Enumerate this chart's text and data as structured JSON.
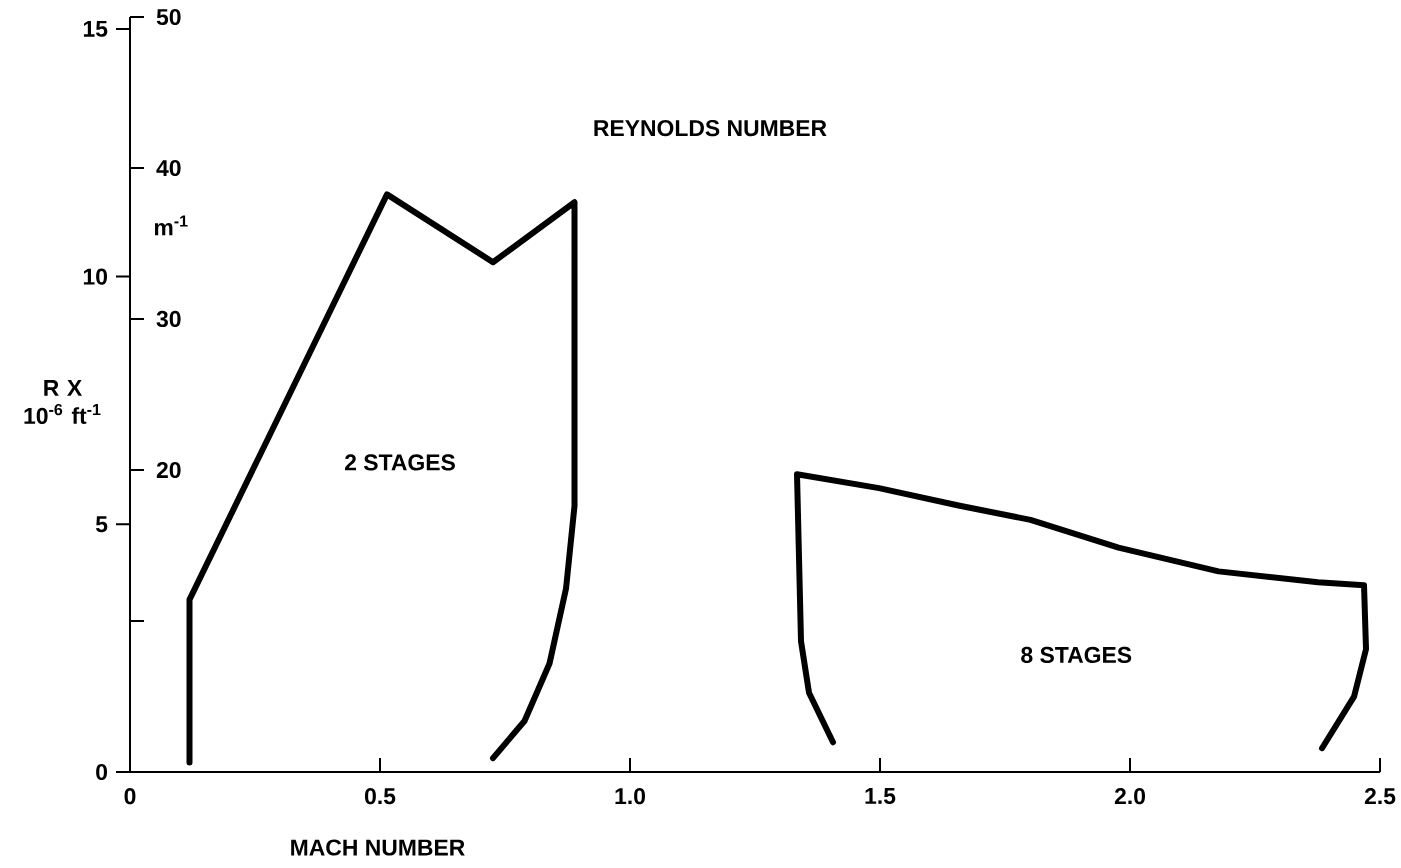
{
  "chart_data": {
    "type": "line",
    "title": "REYNOLDS NUMBER",
    "xlabel": "MACH NUMBER",
    "ylabel": "R X 10$^{-6}$ ft$^{-1}$",
    "y2label": "m$^{-1}$",
    "xlim": [
      0,
      2.5
    ],
    "xticks": [
      0,
      0.5,
      {
        "value": 1.0,
        "label": "1.0"
      },
      1.5,
      {
        "value": 2.0,
        "label": "2.0"
      },
      2.5
    ],
    "ylim": [
      0,
      15.24
    ],
    "yticks": [
      0,
      5,
      10,
      15
    ],
    "y2lim": [
      0,
      50
    ],
    "y2ticks": [
      {
        "value": 10,
        "label": null
      },
      20,
      30,
      40,
      50
    ],
    "series": [
      {
        "color": "#000000",
        "x": [
          0.119,
          0.119,
          0.514,
          0.726,
          0.889,
          0.889,
          0.872,
          0.839,
          0.789,
          0.726
        ],
        "values": [
          0.19,
          3.48,
          11.66,
          10.29,
          11.5,
          5.37,
          3.7,
          2.19,
          1.03,
          0.28
        ]
      },
      {
        "color": "#000000",
        "x": [
          1.406,
          1.358,
          1.342,
          1.334,
          1.498,
          1.657,
          1.801,
          1.977,
          2.177,
          2.376,
          2.468,
          2.472,
          2.448,
          2.384
        ],
        "values": [
          0.6,
          1.6,
          2.64,
          6.01,
          5.73,
          5.38,
          5.09,
          4.53,
          4.05,
          3.83,
          3.77,
          2.48,
          1.52,
          0.48
        ]
      }
    ],
    "annotations": [
      "2 STAGES",
      "8 STAGES"
    ]
  }
}
